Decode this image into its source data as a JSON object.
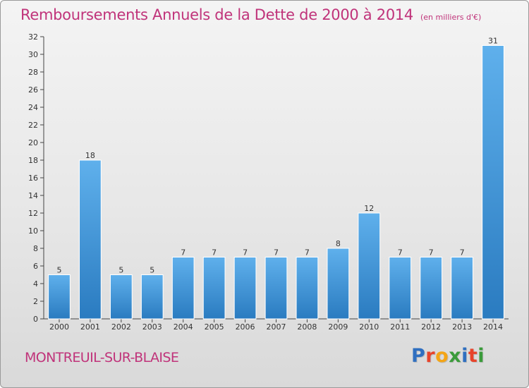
{
  "title": "Remboursements Annuels de la Dette de 2000 à 2014",
  "unit": "(en milliers d'€)",
  "commune": "MONTREUIL-SUR-BLAISE",
  "logo": {
    "text": "Proxiti",
    "letters": [
      {
        "char": "P",
        "color": "#2f6fc0"
      },
      {
        "char": "r",
        "color": "#e8442b"
      },
      {
        "char": "o",
        "color": "#f4a516"
      },
      {
        "char": "x",
        "color": "#3a9b3a"
      },
      {
        "char": "i",
        "color": "#2f6fc0"
      },
      {
        "char": "t",
        "color": "#e8442b"
      },
      {
        "char": "i",
        "color": "#3a9b3a"
      }
    ]
  },
  "colors": {
    "bar_top": "#5fb0ec",
    "bar_bottom": "#2a7bc0",
    "title": "#c0337a",
    "axis": "#444444"
  },
  "chart_data": {
    "type": "bar",
    "categories": [
      "2000",
      "2001",
      "2002",
      "2003",
      "2004",
      "2005",
      "2006",
      "2007",
      "2008",
      "2009",
      "2010",
      "2011",
      "2012",
      "2013",
      "2014"
    ],
    "values": [
      5,
      18,
      5,
      5,
      7,
      7,
      7,
      7,
      7,
      8,
      12,
      7,
      7,
      7,
      31
    ],
    "ylim": [
      0,
      32
    ],
    "yticks": [
      0,
      2,
      4,
      6,
      8,
      10,
      12,
      14,
      16,
      18,
      20,
      22,
      24,
      26,
      28,
      30,
      32
    ],
    "grid": false,
    "data_labels": true
  }
}
